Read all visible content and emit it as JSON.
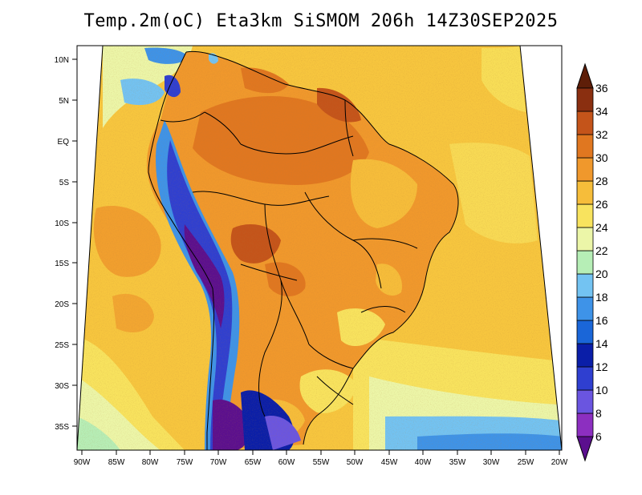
{
  "title": "Temp.2m(oC) Eta3km SiSMOM 206h 14Z30SEP2025",
  "map": {
    "variable": "2 m air temperature",
    "units": "oC",
    "region": "South America"
  },
  "lat_labels": [
    "10N",
    "5N",
    "EQ",
    "5S",
    "10S",
    "15S",
    "20S",
    "25S",
    "30S",
    "35S"
  ],
  "lon_labels": [
    "90W",
    "85W",
    "80W",
    "75W",
    "70W",
    "65W",
    "60W",
    "55W",
    "50W",
    "45W",
    "40W",
    "35W",
    "30W",
    "25W",
    "20W"
  ],
  "colorbar": {
    "labels": [
      "6",
      "8",
      "10",
      "12",
      "14",
      "16",
      "18",
      "20",
      "22",
      "24",
      "26",
      "28",
      "30",
      "32",
      "34",
      "36"
    ],
    "colors": [
      "#5b0f8e",
      "#8c2fc0",
      "#6a55e0",
      "#2f3fd0",
      "#0a1ea8",
      "#1a66d8",
      "#3e93e8",
      "#73c3f2",
      "#b6eeb6",
      "#ecf6a8",
      "#f8e35e",
      "#f6bd3a",
      "#f0982c",
      "#e07720",
      "#c4541a",
      "#8a2f10",
      "#5e1e08"
    ]
  },
  "icons": {
    "colorbar_top": "triangle-up-icon",
    "colorbar_bottom": "triangle-down-icon"
  }
}
